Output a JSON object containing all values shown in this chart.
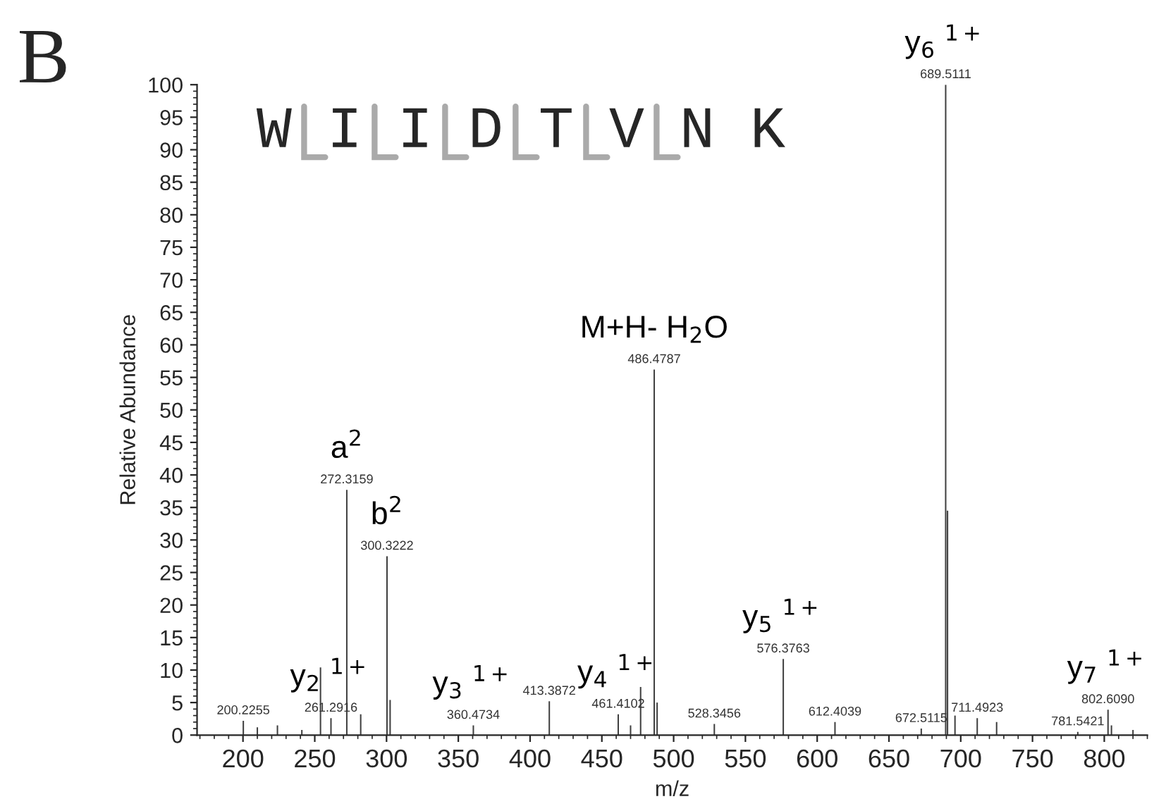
{
  "chart_data": {
    "type": "bar",
    "color": "#404040",
    "x": [
      200.2255,
      210,
      224,
      241,
      254,
      261.2916,
      272.3159,
      282,
      300.3222,
      302.5,
      360.4734,
      413.3872,
      461.4102,
      470,
      477,
      486.4787,
      488.5,
      528.3456,
      576.3763,
      612.4039,
      672.5115,
      689.5111,
      690.8,
      696,
      711.4923,
      725,
      781.5421,
      802.609,
      805,
      820
    ],
    "values": [
      2.2,
      1.2,
      1.5,
      0.8,
      10.4,
      2.6,
      37.7,
      3.2,
      27.5,
      5.4,
      1.5,
      5.2,
      3.2,
      1.5,
      7.4,
      56.2,
      5,
      1.7,
      11.7,
      2,
      1,
      100,
      34.5,
      3,
      2.6,
      2,
      0.5,
      3.9,
      1.5,
      0.8
    ],
    "xlim": [
      168,
      830
    ],
    "ylim": [
      0,
      100
    ],
    "xticks": [
      200,
      250,
      300,
      350,
      400,
      450,
      500,
      550,
      600,
      650,
      700,
      750,
      800
    ],
    "yticks": [
      0,
      5,
      10,
      15,
      20,
      25,
      30,
      35,
      40,
      45,
      50,
      55,
      60,
      65,
      70,
      75,
      80,
      85,
      90,
      95,
      100
    ],
    "xlabel": "m/z",
    "ylabel": "Relative Abundance",
    "annotations": [
      "B",
      "W I I D T V N K",
      {
        "text": "200.2255",
        "x": 200.2255,
        "y": 2.2
      },
      {
        "text": "261.2916",
        "x": 261.2916,
        "y": 2.6
      },
      {
        "text": "272.3159",
        "x": 272.3159,
        "y": 37.7
      },
      {
        "text": "300.3222",
        "x": 300.3222,
        "y": 27.5
      },
      {
        "text": "360.4734",
        "x": 360.4734,
        "y": 1.5
      },
      {
        "text": "413.3872",
        "x": 413.3872,
        "y": 5.2
      },
      {
        "text": "461.4102",
        "x": 461.4102,
        "y": 3.2
      },
      {
        "text": "486.4787",
        "x": 486.4787,
        "y": 56.2
      },
      {
        "text": "528.3456",
        "x": 528.3456,
        "y": 1.7
      },
      {
        "text": "576.3763",
        "x": 576.3763,
        "y": 11.7
      },
      {
        "text": "612.4039",
        "x": 612.4039,
        "y": 2
      },
      {
        "text": "672.5115",
        "x": 672.5115,
        "y": 1
      },
      {
        "text": "689.5111",
        "x": 689.5111,
        "y": 100
      },
      {
        "text": "711.4923",
        "x": 711.4923,
        "y": 2.6
      },
      {
        "text": "781.5421",
        "x": 781.5421,
        "y": 0.5
      },
      {
        "text": "802.6090",
        "x": 802.609,
        "y": 3.9
      },
      {
        "text": "a$^{2}$",
        "x": 272.3159,
        "y": 37.7
      },
      {
        "text": "b$^{2}$",
        "x": 300.3222,
        "y": 27.5
      },
      {
        "text": "M+H- H$_{2}$O",
        "x": 486.4787,
        "y": 56.2
      },
      {
        "text": "y$_{2}$ $^{1+}$",
        "x": 261.2916,
        "y": 2.6
      },
      {
        "text": "y$_{3}$ $^{1+}$",
        "x": 360.4734,
        "y": 1.5
      },
      {
        "text": "y$_{4}$ $^{1+}$",
        "x": 461.4102,
        "y": 3.2
      },
      {
        "text": "y$_{5}$ $^{1+}$",
        "x": 576.3763,
        "y": 11.7
      },
      {
        "text": "y$_{6}$ $^{1+}$",
        "x": 689.5111,
        "y": 100
      },
      {
        "text": "y$_{7}$ $^{1+}$",
        "x": 802.609,
        "y": 3.9
      }
    ]
  }
}
